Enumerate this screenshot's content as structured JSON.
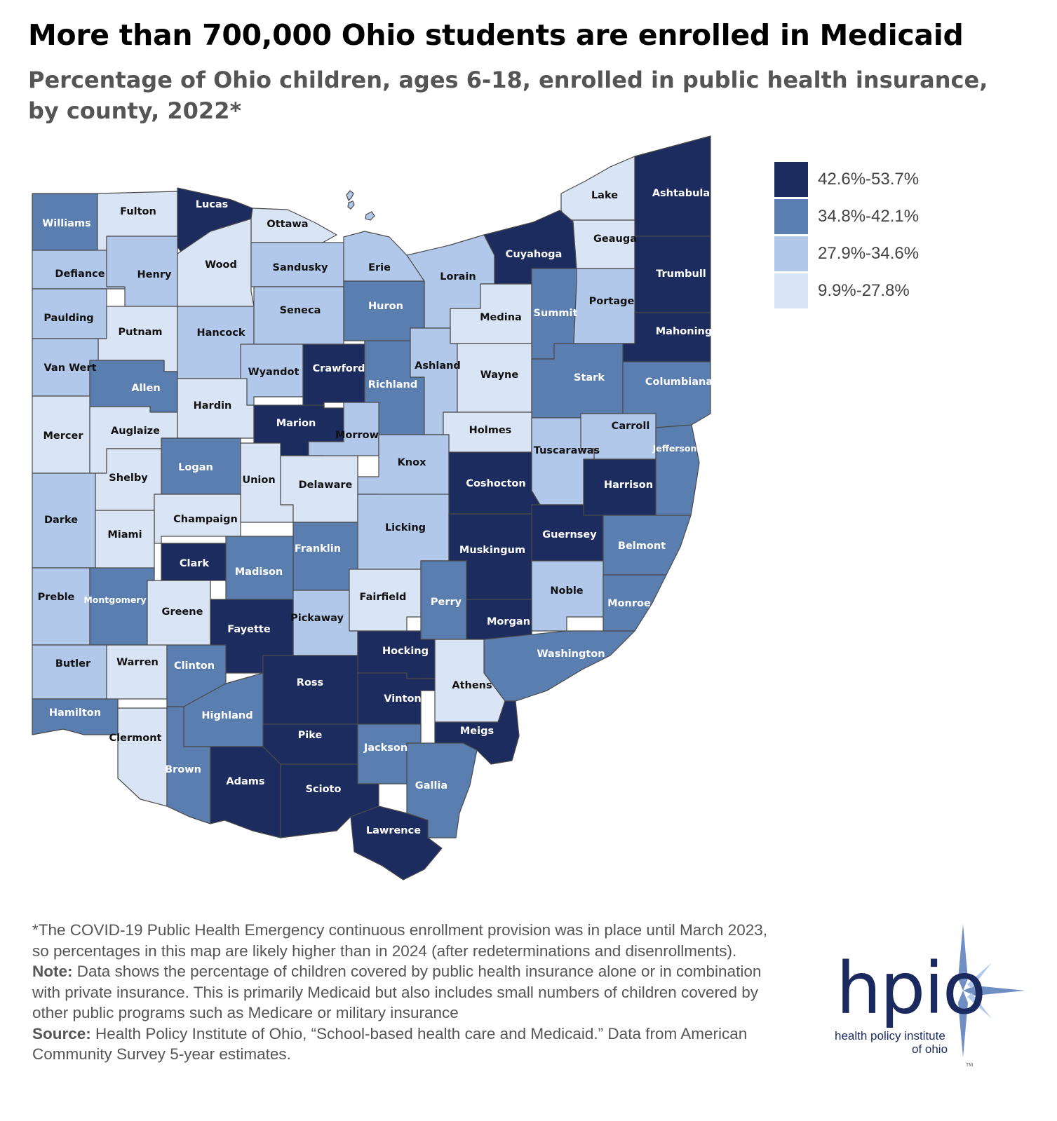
{
  "header": {
    "title": "More than 700,000 Ohio students are enrolled in Medicaid",
    "subtitle": "Percentage of Ohio children, ages 6-18, enrolled in public health insurance, by county, 2022*"
  },
  "legend": [
    {
      "label": "42.6%-53.7%",
      "color": "#1d2c5e",
      "level": 4
    },
    {
      "label": "34.8%-42.1%",
      "color": "#5b7eb0",
      "level": 3
    },
    {
      "label": "27.9%-34.6%",
      "color": "#b1c8ea",
      "level": 2
    },
    {
      "label": "9.9%-27.8%",
      "color": "#d9e4f5",
      "level": 1
    }
  ],
  "counties": [
    {
      "name": "Williams",
      "level": 3
    },
    {
      "name": "Fulton",
      "level": 1
    },
    {
      "name": "Lucas",
      "level": 4
    },
    {
      "name": "Ottawa",
      "level": 1
    },
    {
      "name": "Lake",
      "level": 1
    },
    {
      "name": "Ashtabula",
      "level": 4
    },
    {
      "name": "Geauga",
      "level": 1
    },
    {
      "name": "Defiance",
      "level": 2
    },
    {
      "name": "Henry",
      "level": 2
    },
    {
      "name": "Wood",
      "level": 1
    },
    {
      "name": "Sandusky",
      "level": 2
    },
    {
      "name": "Erie",
      "level": 2
    },
    {
      "name": "Lorain",
      "level": 2
    },
    {
      "name": "Cuyahoga",
      "level": 4
    },
    {
      "name": "Trumbull",
      "level": 4
    },
    {
      "name": "Paulding",
      "level": 2
    },
    {
      "name": "Putnam",
      "level": 1
    },
    {
      "name": "Hancock",
      "level": 2
    },
    {
      "name": "Seneca",
      "level": 2
    },
    {
      "name": "Huron",
      "level": 3
    },
    {
      "name": "Medina",
      "level": 1
    },
    {
      "name": "Summit",
      "level": 3
    },
    {
      "name": "Portage",
      "level": 2
    },
    {
      "name": "Mahoning",
      "level": 4
    },
    {
      "name": "Van Wert",
      "level": 2
    },
    {
      "name": "Allen",
      "level": 3
    },
    {
      "name": "Wyandot",
      "level": 2
    },
    {
      "name": "Crawford",
      "level": 4
    },
    {
      "name": "Richland",
      "level": 3
    },
    {
      "name": "Ashland",
      "level": 2
    },
    {
      "name": "Wayne",
      "level": 1
    },
    {
      "name": "Stark",
      "level": 3
    },
    {
      "name": "Columbiana",
      "level": 3
    },
    {
      "name": "Hardin",
      "level": 1
    },
    {
      "name": "Mercer",
      "level": 1
    },
    {
      "name": "Auglaize",
      "level": 1
    },
    {
      "name": "Marion",
      "level": 4
    },
    {
      "name": "Morrow",
      "level": 2
    },
    {
      "name": "Holmes",
      "level": 1
    },
    {
      "name": "Carroll",
      "level": 2
    },
    {
      "name": "Tuscarawas",
      "level": 2
    },
    {
      "name": "Jefferson",
      "level": 3
    },
    {
      "name": "Logan",
      "level": 3
    },
    {
      "name": "Knox",
      "level": 2
    },
    {
      "name": "Shelby",
      "level": 1
    },
    {
      "name": "Union",
      "level": 1
    },
    {
      "name": "Delaware",
      "level": 1
    },
    {
      "name": "Coshocton",
      "level": 4
    },
    {
      "name": "Harrison",
      "level": 4
    },
    {
      "name": "Darke",
      "level": 2
    },
    {
      "name": "Champaign",
      "level": 1
    },
    {
      "name": "Miami",
      "level": 1
    },
    {
      "name": "Licking",
      "level": 2
    },
    {
      "name": "Guernsey",
      "level": 4
    },
    {
      "name": "Franklin",
      "level": 3
    },
    {
      "name": "Muskingum",
      "level": 4
    },
    {
      "name": "Belmont",
      "level": 3
    },
    {
      "name": "Clark",
      "level": 4
    },
    {
      "name": "Madison",
      "level": 3
    },
    {
      "name": "Preble",
      "level": 2
    },
    {
      "name": "Montgomery",
      "level": 3
    },
    {
      "name": "Fairfield",
      "level": 1
    },
    {
      "name": "Noble",
      "level": 2
    },
    {
      "name": "Perry",
      "level": 3
    },
    {
      "name": "Greene",
      "level": 1
    },
    {
      "name": "Monroe",
      "level": 3
    },
    {
      "name": "Pickaway",
      "level": 2
    },
    {
      "name": "Fayette",
      "level": 4
    },
    {
      "name": "Morgan",
      "level": 4
    },
    {
      "name": "Hocking",
      "level": 4
    },
    {
      "name": "Washington",
      "level": 3
    },
    {
      "name": "Butler",
      "level": 2
    },
    {
      "name": "Warren",
      "level": 1
    },
    {
      "name": "Clinton",
      "level": 3
    },
    {
      "name": "Ross",
      "level": 4
    },
    {
      "name": "Athens",
      "level": 1
    },
    {
      "name": "Vinton",
      "level": 4
    },
    {
      "name": "Hamilton",
      "level": 3
    },
    {
      "name": "Highland",
      "level": 3
    },
    {
      "name": "Clermont",
      "level": 1
    },
    {
      "name": "Meigs",
      "level": 4
    },
    {
      "name": "Pike",
      "level": 4
    },
    {
      "name": "Jackson",
      "level": 3
    },
    {
      "name": "Brown",
      "level": 3
    },
    {
      "name": "Adams",
      "level": 4
    },
    {
      "name": "Scioto",
      "level": 4
    },
    {
      "name": "Gallia",
      "level": 3
    },
    {
      "name": "Lawrence",
      "level": 4
    }
  ],
  "notes": {
    "footnote": "*The COVID-19 Public Health Emergency continuous enrollment provision was in place until March 2023, so percentages in this map are likely higher than in 2024 (after redeterminations and disenrollments).",
    "note_label": "Note:",
    "note_text": " Data shows the percentage of children covered by public health insurance alone or in combination with private insurance. This is primarily Medicaid but also includes small numbers of children covered by other public programs such as Medicare or military insurance",
    "source_label": "Source:",
    "source_text": " Health Policy Institute of Ohio, “School-based health care and Medicaid.” Data from American Community Survey 5-year estimates."
  },
  "logo": {
    "wordmark": "hpio",
    "tagline_line1": "health policy institute",
    "tagline_line2": "of ohio",
    "tm": "TM"
  }
}
